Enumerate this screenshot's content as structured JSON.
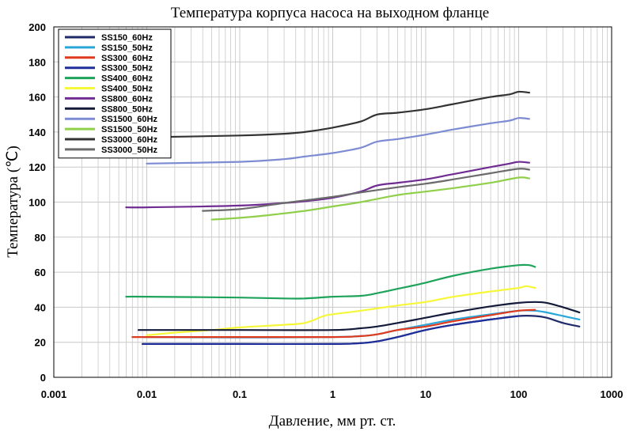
{
  "chart_data": {
    "type": "line",
    "title": "Температура корпуса насоса на выходном фланце",
    "xlabel": "Давление, мм рт. ст.",
    "ylabel": "Температура (℃)",
    "x_scale": "log",
    "xlim": [
      0.001,
      1000
    ],
    "ylim": [
      0,
      200
    ],
    "x_ticks": [
      0.001,
      0.01,
      0.1,
      1,
      10,
      100,
      1000
    ],
    "x_tick_labels": [
      "0.001",
      "0.01",
      "0.1",
      "1",
      "10",
      "100",
      "1000"
    ],
    "y_ticks": [
      0,
      20,
      40,
      60,
      80,
      100,
      120,
      140,
      160,
      180,
      200
    ],
    "y_tick_labels": [
      "0",
      "20",
      "40",
      "60",
      "80",
      "100",
      "120",
      "140",
      "160",
      "180",
      "200"
    ],
    "grid": true,
    "legend_position": "top-left",
    "series": [
      {
        "name": "SS150_60Hz",
        "color": "#1f2a6b",
        "points": [
          [
            0.009,
            19
          ],
          [
            0.1,
            19
          ],
          [
            1,
            19
          ],
          [
            2,
            19.5
          ],
          [
            3,
            20.5
          ],
          [
            5,
            23
          ],
          [
            10,
            27
          ],
          [
            20,
            30
          ],
          [
            50,
            33
          ],
          [
            100,
            35
          ],
          [
            150,
            35
          ],
          [
            200,
            34
          ],
          [
            300,
            31
          ],
          [
            450,
            29
          ]
        ]
      },
      {
        "name": "SS150_50Hz",
        "color": "#2aa7d8",
        "points": [
          [
            0.009,
            23
          ],
          [
            0.1,
            22.7
          ],
          [
            1,
            23
          ],
          [
            2,
            23.5
          ],
          [
            3,
            24.5
          ],
          [
            5,
            27
          ],
          [
            10,
            30
          ],
          [
            20,
            33
          ],
          [
            50,
            36
          ],
          [
            100,
            38
          ],
          [
            150,
            38
          ],
          [
            200,
            37
          ],
          [
            300,
            35
          ],
          [
            450,
            33
          ]
        ]
      },
      {
        "name": "SS300_60Hz",
        "color": "#e03a1e",
        "points": [
          [
            0.007,
            23
          ],
          [
            0.01,
            23
          ],
          [
            0.1,
            23
          ],
          [
            1,
            23
          ],
          [
            2,
            23.5
          ],
          [
            3,
            24.5
          ],
          [
            5,
            27
          ],
          [
            10,
            29
          ],
          [
            20,
            32
          ],
          [
            50,
            35.5
          ],
          [
            100,
            38
          ],
          [
            150,
            38.5
          ]
        ]
      },
      {
        "name": "SS300_50Hz",
        "color": "#1f2f9a",
        "points": [
          [
            0.009,
            19
          ],
          [
            0.1,
            19
          ],
          [
            1,
            19
          ],
          [
            2,
            19.5
          ],
          [
            3,
            20.5
          ],
          [
            5,
            23
          ],
          [
            10,
            27
          ],
          [
            20,
            30
          ],
          [
            50,
            33
          ],
          [
            100,
            35
          ]
        ]
      },
      {
        "name": "SS400_60Hz",
        "color": "#1ea35a",
        "points": [
          [
            0.006,
            46
          ],
          [
            0.01,
            46
          ],
          [
            0.1,
            45.5
          ],
          [
            0.3,
            45
          ],
          [
            0.5,
            45
          ],
          [
            1,
            46
          ],
          [
            2,
            46.5
          ],
          [
            3,
            48
          ],
          [
            5,
            50.5
          ],
          [
            10,
            54
          ],
          [
            20,
            58
          ],
          [
            50,
            62
          ],
          [
            100,
            64
          ],
          [
            130,
            64
          ],
          [
            150,
            63
          ]
        ]
      },
      {
        "name": "SS400_50Hz",
        "color": "#f7f73a",
        "points": [
          [
            0.01,
            24
          ],
          [
            0.02,
            25.5
          ],
          [
            0.05,
            27
          ],
          [
            0.1,
            28.5
          ],
          [
            0.3,
            30
          ],
          [
            0.5,
            31
          ],
          [
            0.8,
            35
          ],
          [
            1,
            36
          ],
          [
            2,
            38
          ],
          [
            5,
            41
          ],
          [
            10,
            43
          ],
          [
            20,
            46
          ],
          [
            50,
            49
          ],
          [
            100,
            51
          ],
          [
            120,
            52
          ],
          [
            150,
            51
          ]
        ]
      },
      {
        "name": "SS800_60Hz",
        "color": "#6f2c91",
        "points": [
          [
            0.006,
            97
          ],
          [
            0.01,
            97
          ],
          [
            0.1,
            98
          ],
          [
            0.3,
            99.5
          ],
          [
            0.5,
            100.5
          ],
          [
            1,
            102.5
          ],
          [
            2,
            106
          ],
          [
            3,
            109.5
          ],
          [
            5,
            111
          ],
          [
            10,
            113
          ],
          [
            20,
            116
          ],
          [
            50,
            120
          ],
          [
            80,
            122
          ],
          [
            100,
            123
          ],
          [
            130,
            122.5
          ]
        ]
      },
      {
        "name": "SS800_50Hz",
        "color": "#141a3a",
        "points": [
          [
            0.009,
            27
          ],
          [
            0.01,
            27
          ],
          [
            0.1,
            27
          ],
          [
            1,
            27
          ],
          [
            2,
            28
          ],
          [
            3,
            29
          ],
          [
            5,
            31
          ],
          [
            10,
            34
          ],
          [
            20,
            37
          ],
          [
            50,
            40.5
          ],
          [
            100,
            42.5
          ],
          [
            150,
            43
          ],
          [
            200,
            42.5
          ],
          [
            300,
            40
          ],
          [
            450,
            37
          ]
        ]
      },
      {
        "name": "SS1500_60Hz",
        "color": "#7d8cd2",
        "points": [
          [
            0.01,
            122
          ],
          [
            0.1,
            123
          ],
          [
            0.3,
            124.5
          ],
          [
            0.5,
            126
          ],
          [
            1,
            128
          ],
          [
            2,
            131
          ],
          [
            3,
            134.5
          ],
          [
            5,
            136
          ],
          [
            10,
            138.5
          ],
          [
            20,
            141.5
          ],
          [
            50,
            145
          ],
          [
            80,
            146.5
          ],
          [
            100,
            148
          ],
          [
            130,
            147.5
          ]
        ]
      },
      {
        "name": "SS1500_50Hz",
        "color": "#8fcf4a",
        "points": [
          [
            0.05,
            90
          ],
          [
            0.1,
            91
          ],
          [
            0.2,
            92.5
          ],
          [
            0.5,
            95
          ],
          [
            1,
            97.5
          ],
          [
            2,
            100
          ],
          [
            5,
            104
          ],
          [
            10,
            106
          ],
          [
            20,
            108
          ],
          [
            50,
            111
          ],
          [
            100,
            114
          ],
          [
            130,
            113.5
          ]
        ]
      },
      {
        "name": "SS3000_60Hz",
        "color": "#333333",
        "points": [
          [
            0.01,
            137
          ],
          [
            0.1,
            138
          ],
          [
            0.3,
            139
          ],
          [
            0.5,
            140
          ],
          [
            1,
            142.5
          ],
          [
            2,
            146
          ],
          [
            3,
            150
          ],
          [
            5,
            151
          ],
          [
            10,
            153
          ],
          [
            20,
            156
          ],
          [
            50,
            160
          ],
          [
            80,
            161.5
          ],
          [
            100,
            163
          ],
          [
            130,
            162.5
          ]
        ]
      },
      {
        "name": "SS3000_50Hz",
        "color": "#6b6b6b",
        "points": [
          [
            0.04,
            95
          ],
          [
            0.1,
            96
          ],
          [
            0.3,
            99.5
          ],
          [
            0.5,
            101
          ],
          [
            1,
            103
          ],
          [
            2,
            105.5
          ],
          [
            5,
            108.5
          ],
          [
            10,
            110.5
          ],
          [
            20,
            113
          ],
          [
            50,
            116.5
          ],
          [
            100,
            119
          ],
          [
            130,
            118.5
          ]
        ]
      }
    ]
  }
}
